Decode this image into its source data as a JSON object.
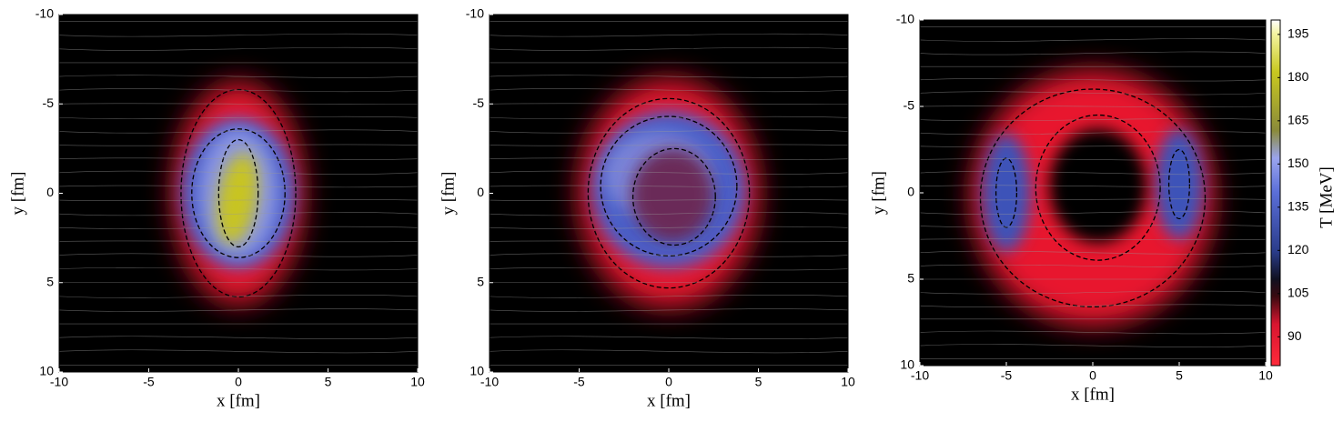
{
  "chart_data": [
    {
      "type": "heatmap",
      "xlabel": "x [fm]",
      "ylabel": "y [fm]",
      "xlim": [
        -10,
        10
      ],
      "ylim": [
        10,
        -10
      ],
      "xticks": [
        -10,
        -5,
        0,
        5,
        10
      ],
      "yticks": [
        -10,
        -5,
        0,
        5,
        10
      ]
    },
    {
      "type": "heatmap",
      "xlabel": "x [fm]",
      "ylabel": "y [fm]",
      "xlim": [
        -10,
        10
      ],
      "ylim": [
        10,
        -10
      ],
      "xticks": [
        -10,
        -5,
        0,
        5,
        10
      ],
      "yticks": [
        -10,
        -5,
        0,
        5,
        10
      ]
    },
    {
      "type": "heatmap",
      "xlabel": "x [fm]",
      "ylabel": "y [fm]",
      "xlim": [
        -10,
        10
      ],
      "ylim": [
        10,
        -10
      ],
      "xticks": [
        -10,
        -5,
        0,
        5,
        10
      ],
      "yticks": [
        -10,
        -5,
        0,
        5,
        10
      ],
      "colorbar": {
        "label": "T [MeV]",
        "lim": [
          80,
          200
        ],
        "ticks": [
          90,
          105,
          120,
          135,
          150,
          165,
          180,
          195
        ]
      }
    }
  ]
}
